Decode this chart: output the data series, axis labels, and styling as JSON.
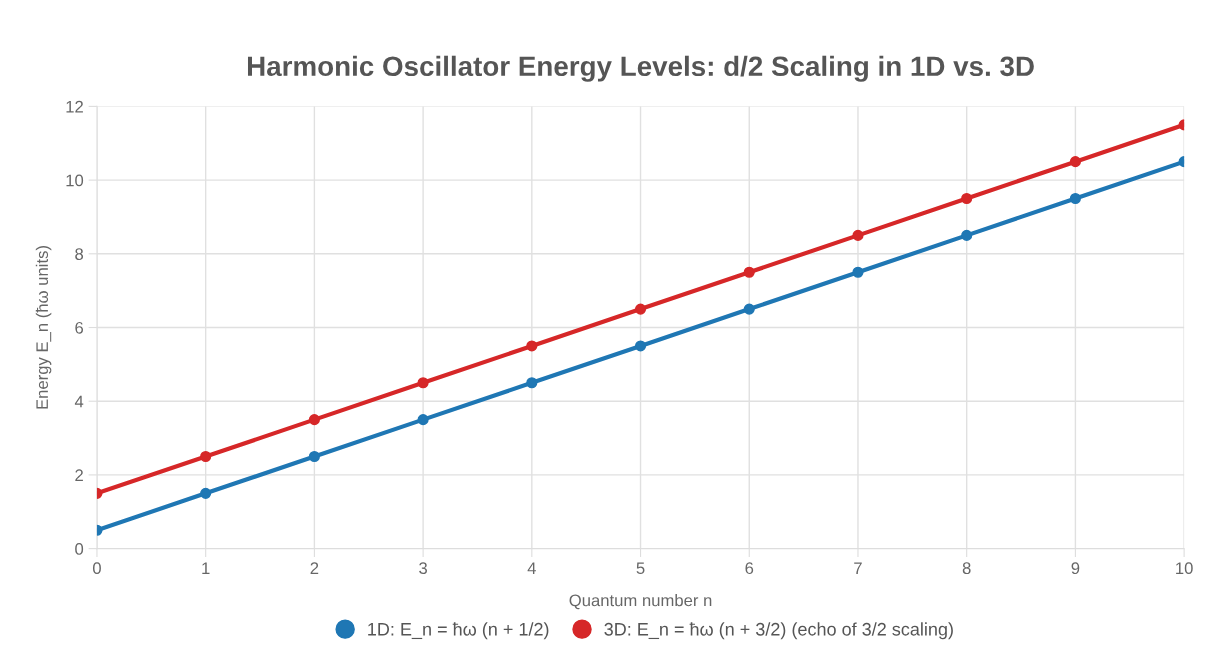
{
  "chart_data": {
    "type": "line",
    "title": "Harmonic Oscillator Energy Levels: d/2 Scaling in 1D vs. 3D",
    "xlabel": "Quantum number n",
    "ylabel": "Energy E_n (ħω units)",
    "x": [
      0,
      1,
      2,
      3,
      4,
      5,
      6,
      7,
      8,
      9,
      10
    ],
    "series": [
      {
        "name": "1D: E_n = ħω (n + 1/2)",
        "color": "#1f77b4",
        "values": [
          0.5,
          1.5,
          2.5,
          3.5,
          4.5,
          5.5,
          6.5,
          7.5,
          8.5,
          9.5,
          10.5
        ]
      },
      {
        "name": "3D: E_n = ħω (n + 3/2) (echo of 3/2 scaling)",
        "color": "#d62728",
        "values": [
          1.5,
          2.5,
          3.5,
          4.5,
          5.5,
          6.5,
          7.5,
          8.5,
          9.5,
          10.5,
          11.5
        ]
      }
    ],
    "xlim": [
      0,
      10
    ],
    "xticks": [
      0,
      1,
      2,
      3,
      4,
      5,
      6,
      7,
      8,
      9,
      10
    ],
    "ylim": [
      0,
      12
    ],
    "yticks": [
      0,
      2,
      4,
      6,
      8,
      10,
      12
    ],
    "grid": true,
    "legend": "bottom",
    "marker": "circle",
    "line_style": "solid"
  }
}
